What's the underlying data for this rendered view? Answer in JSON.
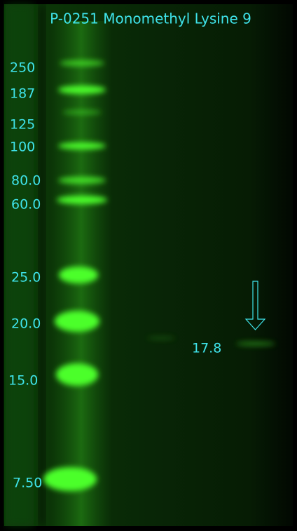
{
  "title": "P-0251 Monomethyl Lysine 9",
  "markers": [
    "250",
    "187",
    "125",
    "100",
    "80.0",
    "60.0",
    "25.0",
    "20.0",
    "15.0",
    "7.50"
  ],
  "annotation": "17.8"
}
